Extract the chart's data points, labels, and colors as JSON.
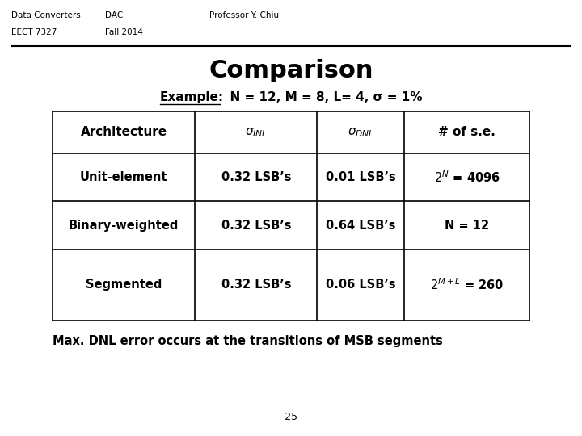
{
  "header_left1": "Data Converters",
  "header_left2": "EECT 7327",
  "header_mid1": "DAC",
  "header_mid2": "Fall 2014",
  "header_right": "Professor Y. Chiu",
  "title": "Comparison",
  "example_label": "Example:",
  "example_text": "  N = 12, M = 8, L= 4, σ = 1%",
  "footer_text": "Max. DNL error occurs at the transitions of MSB segments",
  "page_num": "– 25 –",
  "bg_color": "#ffffff",
  "text_color": "#000000",
  "line_color": "#000000"
}
